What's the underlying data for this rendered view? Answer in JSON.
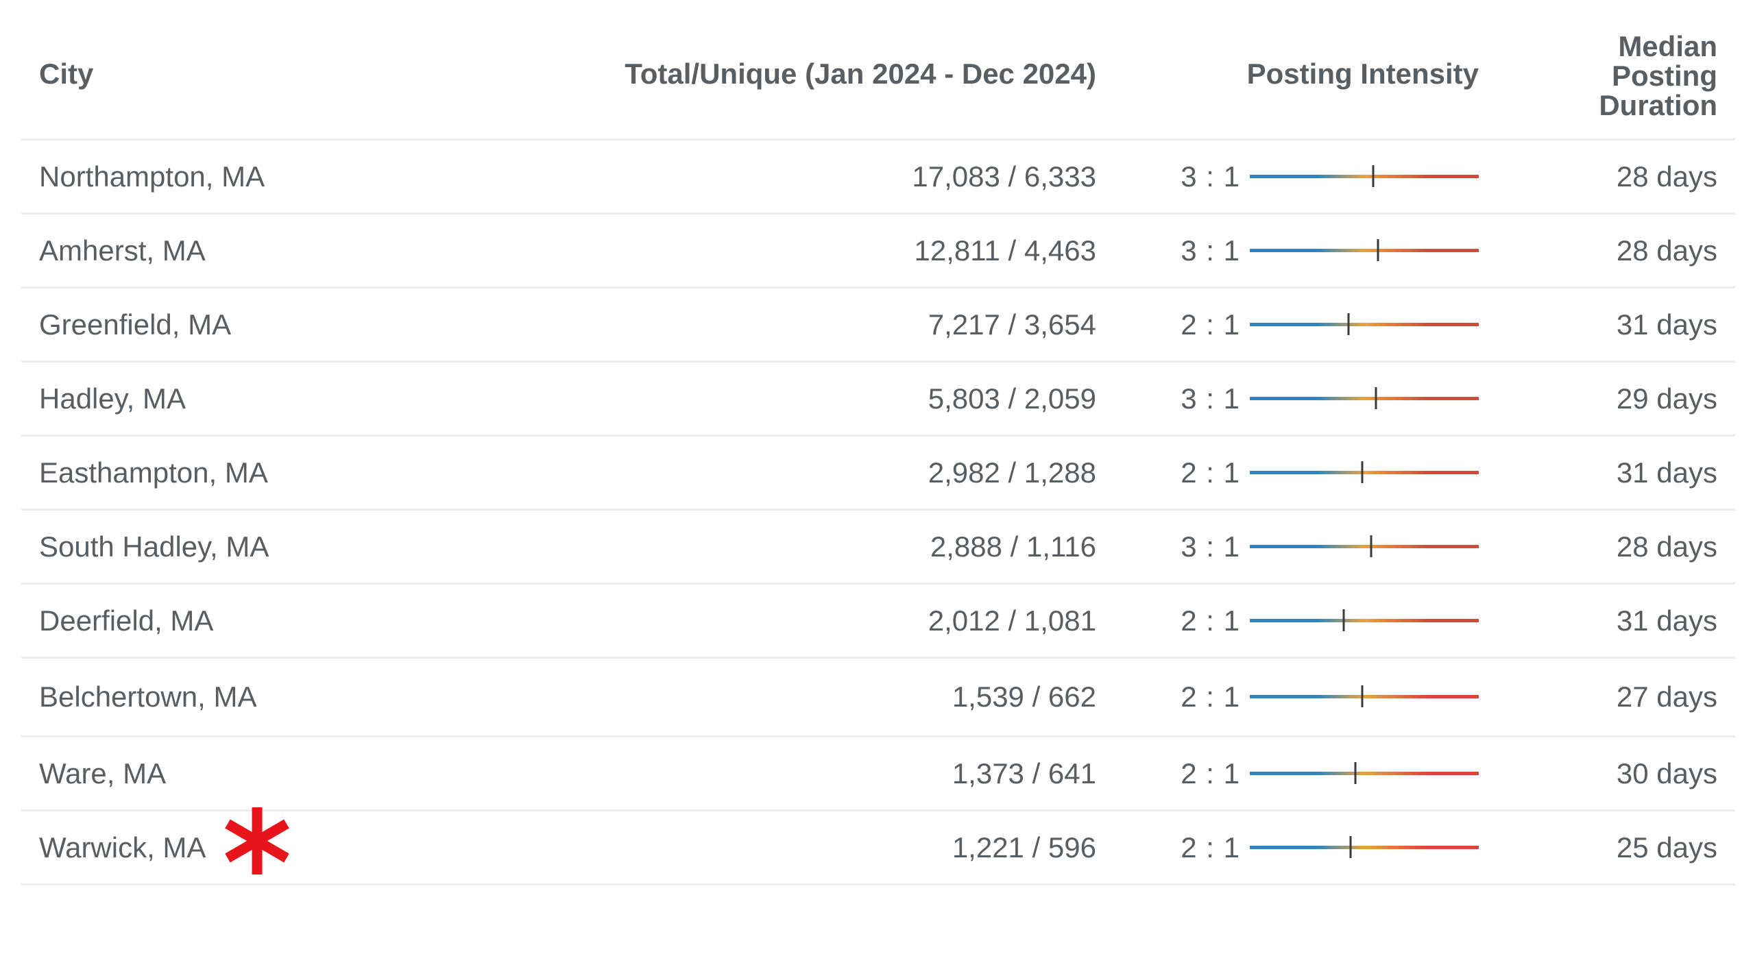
{
  "table": {
    "headers": {
      "city": "City",
      "total_unique": "Total/Unique (Jan 2024 - Dec 2024)",
      "posting_intensity": "Posting Intensity",
      "median_posting_duration": "Median Posting Duration"
    },
    "rows": [
      {
        "city": "Northampton, MA",
        "total_unique": "17,083 / 6,333",
        "ratio": "3 : 1",
        "intensity": 0.54,
        "duration": "28 days"
      },
      {
        "city": "Amherst, MA",
        "total_unique": "12,811 / 4,463",
        "ratio": "3 : 1",
        "intensity": 0.56,
        "duration": "28 days"
      },
      {
        "city": "Greenfield, MA",
        "total_unique": "7,217 / 3,654",
        "ratio": "2 : 1",
        "intensity": 0.43,
        "duration": "31 days"
      },
      {
        "city": "Hadley, MA",
        "total_unique": "5,803 / 2,059",
        "ratio": "3 : 1",
        "intensity": 0.55,
        "duration": "29 days"
      },
      {
        "city": "Easthampton, MA",
        "total_unique": "2,982 / 1,288",
        "ratio": "2 : 1",
        "intensity": 0.49,
        "duration": "31 days"
      },
      {
        "city": "South Hadley, MA",
        "total_unique": "2,888 / 1,116",
        "ratio": "3 : 1",
        "intensity": 0.53,
        "duration": "28 days"
      },
      {
        "city": "Deerfield, MA",
        "total_unique": "2,012 / 1,081",
        "ratio": "2 : 1",
        "intensity": 0.41,
        "duration": "31 days"
      },
      {
        "city": "Belchertown, MA",
        "total_unique": "1,539 / 662",
        "ratio": "2 : 1",
        "intensity": 0.49,
        "duration": "27 days"
      },
      {
        "city": "Ware, MA",
        "total_unique": "1,373 / 641",
        "ratio": "2 : 1",
        "intensity": 0.46,
        "duration": "30 days"
      },
      {
        "city": "Warwick, MA",
        "total_unique": "1,221 / 596",
        "ratio": "2 : 1",
        "intensity": 0.44,
        "duration": "25 days"
      }
    ]
  },
  "colors": {
    "gradient_start": "#2e86c1",
    "gradient_mid": "#e8a33d",
    "gradient_end": "#d9463b",
    "marker": "#3a3a3a",
    "asterisk": "#e8141c"
  },
  "annotation": {
    "icon": "asterisk-icon",
    "target_row": "Warwick, MA"
  }
}
